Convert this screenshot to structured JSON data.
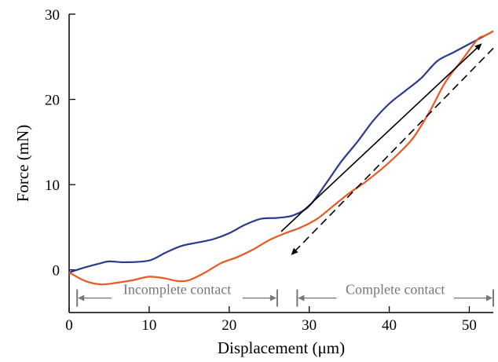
{
  "chart_data": {
    "type": "line",
    "title": "",
    "xlabel": "Displacement (μm)",
    "ylabel": "Force (mN)",
    "xlim": [
      0,
      53
    ],
    "ylim": [
      -5,
      30
    ],
    "x_ticks": [
      0,
      10,
      20,
      30,
      40,
      50
    ],
    "y_ticks": [
      0,
      10,
      20,
      30
    ],
    "grid": false,
    "legend": "none",
    "series": [
      {
        "color": "#2a3a8c",
        "x": [
          0,
          2,
          4,
          5,
          7,
          10,
          12,
          14,
          16,
          18,
          20,
          22,
          24,
          26,
          28,
          30,
          32,
          34,
          36,
          38,
          40,
          42,
          44,
          46,
          48,
          50,
          52,
          53
        ],
        "values": [
          -0.3,
          0.3,
          0.8,
          1.0,
          0.9,
          1.1,
          2.0,
          2.8,
          3.2,
          3.6,
          4.3,
          5.3,
          6.0,
          6.1,
          6.4,
          7.5,
          10.0,
          12.7,
          15.0,
          17.5,
          19.5,
          21.0,
          22.5,
          24.5,
          25.5,
          26.5,
          27.5,
          28.0
        ]
      },
      {
        "color": "#e85a24",
        "x": [
          0,
          2,
          4,
          6,
          8,
          10,
          12,
          13.5,
          15,
          17,
          19,
          21,
          23,
          25,
          27,
          29,
          31,
          33,
          35,
          37,
          39,
          41,
          43,
          45,
          47,
          49,
          51,
          52,
          53
        ],
        "values": [
          -0.3,
          -1.3,
          -1.7,
          -1.5,
          -1.2,
          -0.8,
          -1.0,
          -1.3,
          -1.2,
          -0.3,
          0.8,
          1.5,
          2.4,
          3.5,
          4.3,
          5.0,
          6.0,
          7.5,
          9.0,
          10.3,
          11.8,
          13.5,
          15.5,
          18.5,
          22.0,
          24.5,
          27.0,
          27.5,
          28.0
        ]
      }
    ],
    "arrows": [
      {
        "style": "solid",
        "from": [
          26.5,
          4.5
        ],
        "to": [
          51.5,
          26.5
        ],
        "color": "#000000"
      },
      {
        "style": "dashed",
        "from": [
          53,
          26
        ],
        "to": [
          27.8,
          1.8
        ],
        "color": "#000000"
      }
    ],
    "annotations": [
      {
        "text": "Incomplete contact",
        "range": [
          1.0,
          26.0
        ],
        "y": -3.3,
        "color": "#777777"
      },
      {
        "text": "Complete contact",
        "range": [
          28.5,
          53.0
        ],
        "y": -3.3,
        "color": "#777777"
      }
    ]
  }
}
